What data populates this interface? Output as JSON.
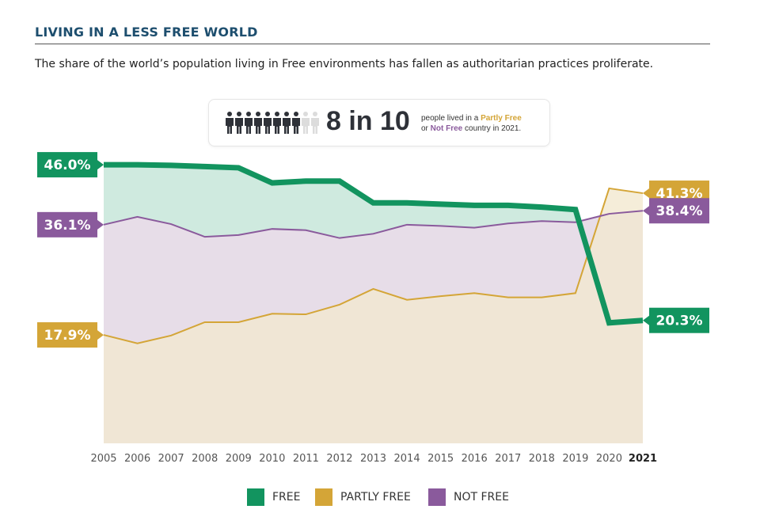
{
  "header": {
    "title": "LIVING IN A LESS FREE WORLD",
    "subtitle": "The share of the world’s population living in Free environments has fallen as authoritarian practices proliferate."
  },
  "callout": {
    "headline": "8 in 10",
    "text_pre": "people lived in a ",
    "partly_free": "Partly Free",
    "text_mid": "or ",
    "not_free": "Not Free",
    "text_post": " country in 2021.",
    "icon": "person-icon",
    "filled_people": 8,
    "total_people": 10
  },
  "chart_data": {
    "type": "area",
    "categories": [
      "2005",
      "2006",
      "2007",
      "2008",
      "2009",
      "2010",
      "2011",
      "2012",
      "2013",
      "2014",
      "2015",
      "2016",
      "2017",
      "2018",
      "2019",
      "2020",
      "2021"
    ],
    "highlight_category": "2021",
    "ylim": [
      0,
      46
    ],
    "grid": false,
    "legend_placement": "bottom",
    "series": [
      {
        "name": "FREE",
        "color": "#12945f",
        "fill": "#cfeadf",
        "values": [
          46.0,
          46.0,
          45.9,
          45.7,
          45.5,
          43.0,
          43.3,
          43.3,
          39.7,
          39.7,
          39.5,
          39.3,
          39.3,
          39.0,
          38.6,
          19.9,
          20.3
        ],
        "start_label": "46.0%",
        "end_label": "20.3%"
      },
      {
        "name": "PARTLY FREE",
        "color": "#d4a537",
        "fill": "#f3e9cf",
        "values": [
          17.9,
          16.5,
          17.8,
          20.0,
          20.0,
          21.4,
          21.3,
          22.9,
          25.5,
          23.7,
          24.3,
          24.8,
          24.1,
          24.1,
          24.8,
          42.1,
          41.3
        ],
        "start_label": "17.9%",
        "end_label": "41.3%"
      },
      {
        "name": "NOT FREE",
        "color": "#8a5a9c",
        "fill": "#e7dde8",
        "values": [
          36.1,
          37.4,
          36.2,
          34.1,
          34.4,
          35.4,
          35.2,
          33.9,
          34.6,
          36.1,
          35.9,
          35.6,
          36.3,
          36.7,
          36.5,
          37.9,
          38.4
        ],
        "start_label": "36.1%",
        "end_label": "38.4%"
      }
    ]
  }
}
